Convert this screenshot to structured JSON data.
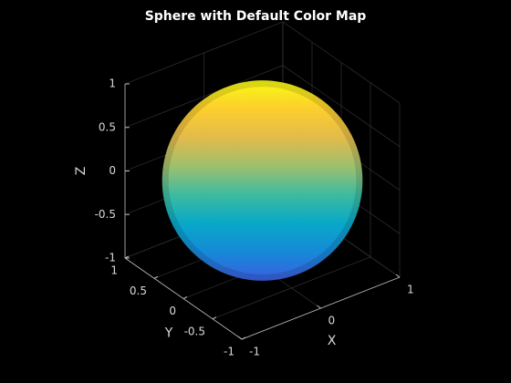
{
  "chart_data": {
    "type": "surface",
    "title": "Sphere with Default Color Map",
    "xlabel": "X",
    "ylabel": "Y",
    "zlabel": "Z",
    "xlim": [
      -1,
      1
    ],
    "ylim": [
      -1,
      1
    ],
    "zlim": [
      -1,
      1
    ],
    "xticks": [
      -1,
      0,
      1
    ],
    "yticks": [
      -1,
      -0.5,
      0,
      0.5,
      1
    ],
    "zticks": [
      -1,
      -0.5,
      0,
      0.5,
      1
    ],
    "grid": true,
    "colormap": [
      "#3b5fe0",
      "#1689d8",
      "#08a8c8",
      "#3cbba0",
      "#9ebf6e",
      "#e3bb4a",
      "#fcce2e",
      "#f8fa12"
    ]
  }
}
